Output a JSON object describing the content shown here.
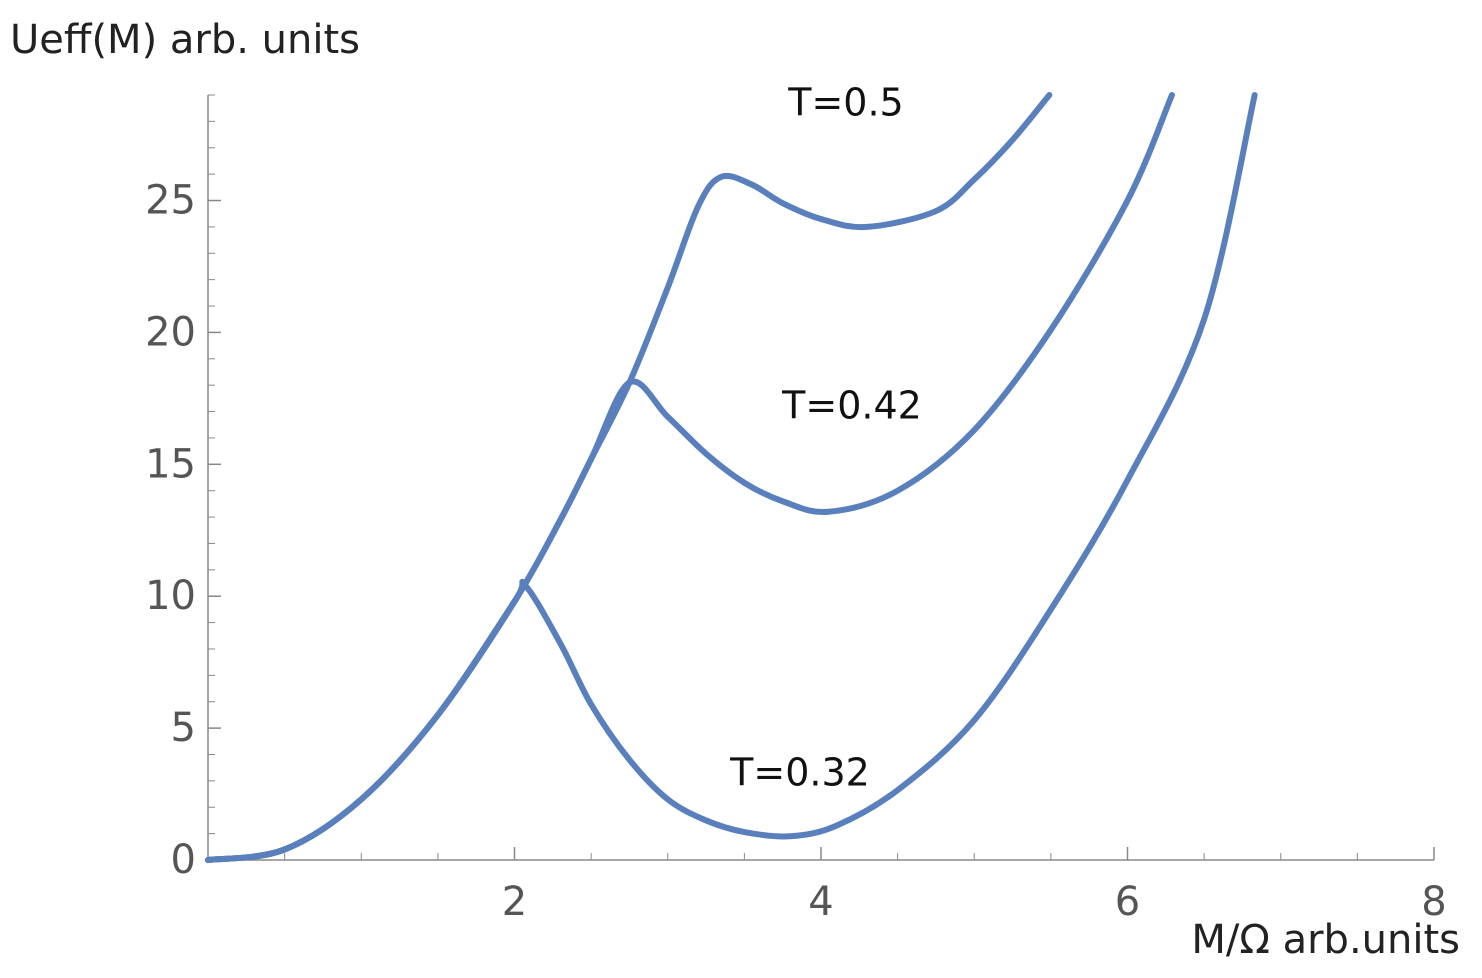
{
  "chart_data": {
    "type": "line",
    "y_label": "Ueff(M) arb. units",
    "x_label": "M/Ω  arb.units",
    "xlim": [
      0,
      8
    ],
    "ylim": [
      0,
      29
    ],
    "xticks": [
      2,
      4,
      6,
      8
    ],
    "yticks": [
      0,
      5,
      10,
      15,
      20,
      25
    ],
    "series": [
      {
        "name": "T=0.32",
        "color": "#5a7fbd",
        "x": [
          0,
          0.5,
          1,
          1.5,
          2,
          2.07,
          2.3,
          2.5,
          2.75,
          3,
          3.25,
          3.5,
          3.8,
          4.1,
          4.5,
          5,
          5.5,
          6,
          6.5,
          6.83
        ],
        "values": [
          0,
          0.4,
          2.3,
          5.5,
          9.8,
          10.4,
          8.2,
          5.9,
          3.8,
          2.3,
          1.5,
          1.06,
          0.9,
          1.3,
          2.65,
          5.3,
          9.5,
          14.4,
          20.5,
          29
        ]
      },
      {
        "name": "T=0.42",
        "color": "#5a7fbd",
        "x": [
          0,
          0.5,
          1,
          1.5,
          2,
          2.3,
          2.5,
          2.75,
          3,
          3.25,
          3.5,
          3.75,
          4.05,
          4.5,
          5,
          5.5,
          6,
          6.29
        ],
        "values": [
          0,
          0.4,
          2.3,
          5.5,
          9.8,
          12.9,
          15.2,
          18.1,
          16.8,
          15.4,
          14.3,
          13.6,
          13.2,
          14.0,
          16.3,
          20.1,
          25,
          29
        ]
      },
      {
        "name": "T=0.5",
        "color": "#5a7fbd",
        "x": [
          0,
          0.5,
          1,
          1.5,
          2,
          2.3,
          2.5,
          2.75,
          3,
          3.2,
          3.35,
          3.55,
          3.75,
          4,
          4.3,
          4.75,
          5,
          5.25,
          5.49
        ],
        "values": [
          0,
          0.4,
          2.3,
          5.5,
          9.8,
          12.9,
          15.2,
          18.1,
          21.7,
          24.8,
          25.9,
          25.6,
          24.9,
          24.3,
          24.0,
          24.6,
          25.8,
          27.3,
          29
        ]
      }
    ]
  }
}
